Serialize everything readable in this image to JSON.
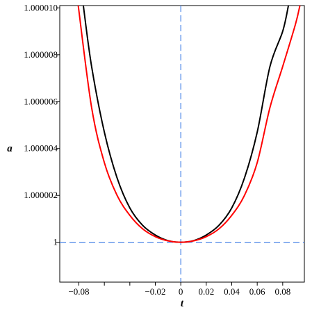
{
  "chart_data": {
    "type": "line",
    "title": "",
    "xlabel": "t",
    "ylabel": "a",
    "xlim": [
      -0.095,
      0.097
    ],
    "ylim": [
      0.9999983,
      1.0000101
    ],
    "x_ticks": [
      {
        "value": -0.08,
        "label": "−0.08"
      },
      {
        "value": -0.06,
        "label": ""
      },
      {
        "value": -0.04,
        "label": ""
      },
      {
        "value": -0.02,
        "label": "−0.02"
      },
      {
        "value": 0,
        "label": "0"
      },
      {
        "value": 0.02,
        "label": "0.02"
      },
      {
        "value": 0.04,
        "label": "0.04"
      },
      {
        "value": 0.06,
        "label": "0.06"
      },
      {
        "value": 0.08,
        "label": "0.08"
      }
    ],
    "y_ticks": [
      {
        "value": 1.0,
        "label": "1"
      },
      {
        "value": 1.000002,
        "label": "1.000002"
      },
      {
        "value": 1.000004,
        "label": "1.000004"
      },
      {
        "value": 1.000006,
        "label": "1.000006"
      },
      {
        "value": 1.000008,
        "label": "1.000008"
      },
      {
        "value": 1.00001,
        "label": "1.000010"
      }
    ],
    "reference_lines": [
      {
        "orientation": "horizontal",
        "value": 1.0,
        "color": "#4a86e8",
        "style": "dashed"
      },
      {
        "orientation": "vertical",
        "value": 0,
        "color": "#4a86e8",
        "style": "dashed"
      }
    ],
    "series": [
      {
        "color": "#000000",
        "x": [
          -0.0765,
          -0.07,
          -0.06,
          -0.05,
          -0.04,
          -0.03,
          -0.02,
          -0.01,
          0,
          0.01,
          0.02,
          0.03,
          0.04,
          0.05,
          0.06,
          0.07,
          0.08,
          0.0845
        ],
        "y": [
          1.0000101,
          1.0000075,
          1.0000047,
          1.000002745,
          1.000001465,
          1.000000725,
          1.00000031,
          1.00000007,
          1.0,
          1.00000007,
          1.00000031,
          1.000000725,
          1.000001465,
          1.000002745,
          1.0000047,
          1.0000075,
          1.000009,
          1.0000101
        ]
      },
      {
        "color": "#ff0000",
        "x": [
          -0.0805,
          -0.07,
          -0.06,
          -0.05,
          -0.04,
          -0.03,
          -0.02,
          -0.01,
          0,
          0.01,
          0.02,
          0.03,
          0.04,
          0.05,
          0.06,
          0.07,
          0.08,
          0.09,
          0.0935
        ],
        "y": [
          1.0000101,
          1.00000575,
          1.0000034,
          1.000002,
          1.00000115,
          1.000000575,
          1.00000024,
          1.00000006,
          1.0,
          1.00000006,
          1.00000024,
          1.000000575,
          1.00000115,
          1.000002,
          1.0000034,
          1.00000575,
          1.0000075,
          1.0000093,
          1.0000101
        ]
      }
    ]
  }
}
